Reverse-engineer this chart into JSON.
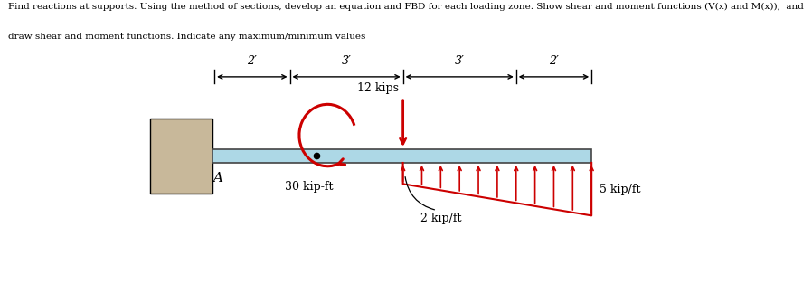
{
  "title_line1": "Find reactions at supports. Using the method of sections, develop an equation and FBD for each loading zone. Show shear and moment functions (V(x) and M(x)),  and",
  "title_line2": "draw shear and moment functions. Indicate any maximum/minimum values",
  "wall_color": "#c8b89a",
  "beam_color": "#add8e6",
  "beam_edge_color": "#444444",
  "red_color": "#cc0000",
  "black": "#000000",
  "segment_positions": [
    0,
    2,
    5,
    8,
    10
  ],
  "dim_labels": [
    "2′",
    "3′",
    "3′",
    "2′"
  ],
  "moment_label": "30 kip-ft",
  "point_load_label": "12 kips",
  "dist_label_left": "2 kip/ft",
  "dist_label_right": "5 kip/ft",
  "label_A": "A",
  "figsize": [
    8.98,
    3.25
  ],
  "dpi": 100
}
